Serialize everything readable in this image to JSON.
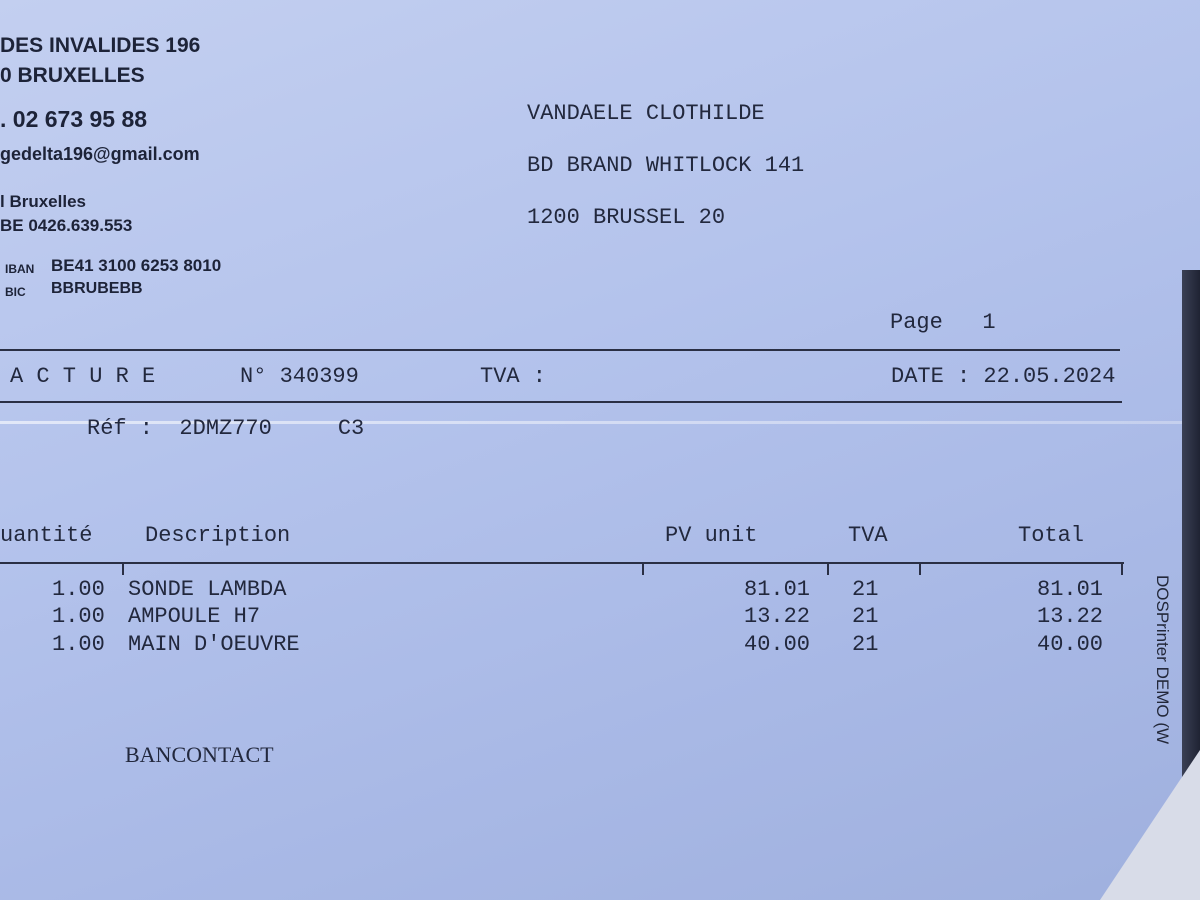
{
  "sender": {
    "street": "DES INVALIDES 196",
    "city": "0 BRUXELLES",
    "phone": ". 02 673 95 88",
    "email": "gedelta196@gmail.com",
    "registry": "l Bruxelles",
    "vat": "BE 0426.639.553",
    "iban_label": "IBAN",
    "iban": "BE41 3100 6253 8010",
    "bic_label": "BIC",
    "bic": "BBRUBEBB"
  },
  "recipient": {
    "name": "VANDAELE CLOTHILDE",
    "street": "BD BRAND WHITLOCK 141",
    "city": "1200 BRUSSEL 20"
  },
  "page_label": "Page   1",
  "invoice": {
    "title": "A C T U R E",
    "number": "N° 340399",
    "tva": "TVA :",
    "date": "DATE : 22.05.2024",
    "ref": "Réf :  2DMZ770     C3"
  },
  "table": {
    "headers": [
      "uantité",
      "Description",
      "PV unit",
      "TVA",
      "Total"
    ],
    "rows": [
      [
        "1.00",
        "SONDE LAMBDA",
        "81.01",
        "21",
        "81.01"
      ],
      [
        "1.00",
        "AMPOULE H7",
        "13.22",
        "21",
        "13.22"
      ],
      [
        "1.00",
        "MAIN D'OEUVRE",
        "40.00",
        "21",
        "40.00"
      ]
    ]
  },
  "payment": "BANCONTACT",
  "watermark": "DOSPrinter DEMO (W"
}
